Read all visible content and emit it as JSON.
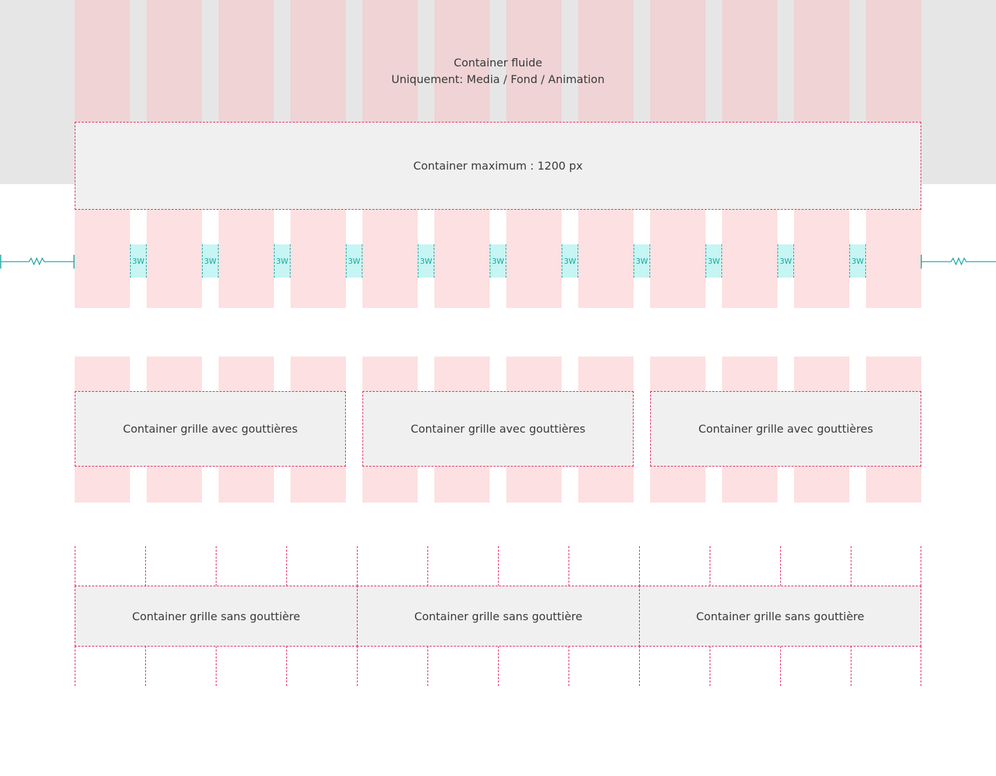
{
  "fluid": {
    "title": "Container fluide",
    "subtitle": "Uniquement: Media / Fond / Animation"
  },
  "max_container": {
    "label": "Container maximum : 1200 px"
  },
  "gutter_label": "3W",
  "grid_with_gutters": {
    "labels": [
      "Container grille avec gouttières",
      "Container grille avec gouttières",
      "Container grille avec gouttières"
    ]
  },
  "grid_no_gutter": {
    "labels": [
      "Container grille sans gouttière",
      "Container grille sans gouttière",
      "Container grille sans gouttière"
    ]
  },
  "columns": 12,
  "colors": {
    "fluid_background": "#e6e6e6",
    "fluid_column": "#efd3d5",
    "column": "#fde0e1",
    "container": "#f0f0f0",
    "dashed_border": "#e0225a",
    "gutter": "#c6f5f3",
    "gutter_text": "#1aa7a2"
  }
}
